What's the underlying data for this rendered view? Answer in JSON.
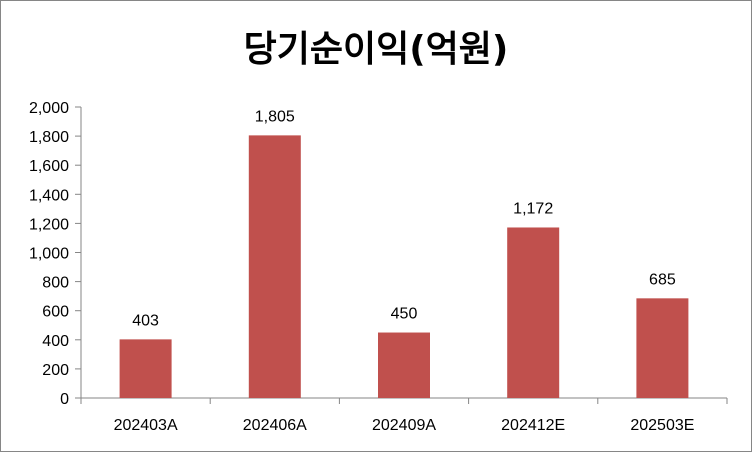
{
  "chart_data": {
    "type": "bar",
    "title": "당기순이익(억원)",
    "xlabel": "",
    "ylabel": "",
    "categories": [
      "202403A",
      "202406A",
      "202409A",
      "202412E",
      "202503E"
    ],
    "values": [
      403,
      1805,
      450,
      1172,
      685
    ],
    "value_labels": [
      "403",
      "1,805",
      "450",
      "1,172",
      "685"
    ],
    "ylim": [
      0,
      2000
    ],
    "yticks": [
      0,
      200,
      400,
      600,
      800,
      1000,
      1200,
      1400,
      1600,
      1800,
      2000
    ],
    "ytick_labels": [
      "0",
      "200",
      "400",
      "600",
      "800",
      "1,000",
      "1,200",
      "1,400",
      "1,600",
      "1,800",
      "2,000"
    ],
    "bar_color": "#C0504D",
    "grid": false,
    "legend": "none"
  }
}
